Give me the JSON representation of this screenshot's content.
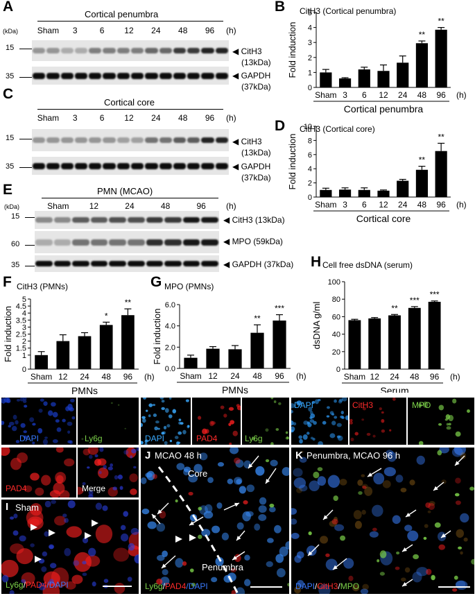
{
  "panels": {
    "A": {
      "letter": "A",
      "title": "Cortical penumbra",
      "kda": "(kDa)",
      "lanes": [
        "Sham",
        "3",
        "6",
        "12",
        "24",
        "48",
        "96"
      ],
      "hours": "(h)",
      "markers": [
        "15",
        "35"
      ],
      "bands": [
        {
          "arrow": "CitH3",
          "sub": "(13kDa)"
        },
        {
          "arrow": "GAPDH",
          "sub": "(37kDa)"
        }
      ]
    },
    "C": {
      "letter": "C",
      "title": "Cortical core",
      "lanes": [
        "Sham",
        "3",
        "6",
        "12",
        "24",
        "48",
        "96"
      ],
      "hours": "(h)",
      "markers": [
        "15",
        "35"
      ],
      "bands": [
        {
          "arrow": "CitH3",
          "sub": "(13kDa)"
        },
        {
          "arrow": "GAPDH",
          "sub": "(37kDa)"
        }
      ]
    },
    "E": {
      "letter": "E",
      "title": "PMN (MCAO)",
      "kda": "(kDa)",
      "lanes": [
        "Sham",
        "12",
        "24",
        "48",
        "96"
      ],
      "hours": "(h)",
      "markers": [
        "15",
        "60",
        "35"
      ],
      "bands": [
        "CitH3 (13kDa)",
        "MPO (59kDa)",
        "GAPDH (37kDa)"
      ]
    },
    "B": {
      "letter": "B",
      "title": "CitH3 (Cortical penumbra)",
      "ylabel": "Fold induction",
      "xlabel": "Cortical penumbra",
      "hours": "(h)"
    },
    "D": {
      "letter": "D",
      "title": "CitH3 (Cortical core)",
      "ylabel": "Fold induction",
      "xlabel": "Cortical core",
      "hours": "(h)"
    },
    "F": {
      "letter": "F",
      "title": "CitH3 (PMNs)",
      "ylabel": "Fold induction",
      "xlabel": "PMNs",
      "hours": "(h)"
    },
    "G": {
      "letter": "G",
      "title": "MPO (PMNs)",
      "ylabel": "Fold induction",
      "xlabel": "PMNs",
      "hours": "(h)"
    },
    "H": {
      "letter": "H",
      "title": "Cell free dsDNA  (serum)",
      "ylabel": "dsDNA g/ml",
      "xlabel": "Serum",
      "hours": "(h)"
    },
    "I": {
      "letter": "I",
      "tag": "Sham",
      "tiles": [
        "DAPI",
        "Ly6g",
        "PAD4",
        "Merge"
      ],
      "merge_parts": [
        "Ly6g",
        "/",
        "PAD4",
        "/DAPI"
      ]
    },
    "J": {
      "letter": "J",
      "tag": "MCAO 48 h",
      "core": "Core",
      "penumbra": "Penumbra",
      "tiles": [
        "DAPI",
        "PAD4",
        "Ly6g"
      ],
      "merge_parts": [
        "Ly6g",
        "/",
        "PAD4",
        "/DAPI"
      ]
    },
    "K": {
      "letter": "K",
      "tag": "Penumbra, MCAO 96 h",
      "tiles": [
        "DAPI",
        "CitH3",
        "MPO"
      ],
      "merge_parts": [
        "DAPI",
        "/",
        "CitH3",
        "/",
        "MPO"
      ]
    }
  },
  "colors": {
    "bar": "#000000",
    "dapi": "#2f78ff",
    "red": "#ff2020",
    "green": "#7dd24a"
  },
  "chart_data": [
    {
      "id": "B",
      "type": "bar",
      "title": "CitH3 (Cortical penumbra)",
      "xlabel": "Cortical penumbra",
      "ylabel": "Fold induction",
      "categories": [
        "Sham",
        "3",
        "6",
        "12",
        "24",
        "48",
        "96"
      ],
      "values": [
        1.0,
        0.6,
        1.2,
        1.1,
        1.65,
        2.95,
        3.85
      ],
      "errors": [
        0.2,
        0.05,
        0.15,
        0.4,
        0.45,
        0.15,
        0.15
      ],
      "significance": [
        "",
        "",
        "",
        "",
        "",
        "**",
        "**"
      ],
      "ylim": [
        0,
        5
      ],
      "yticks": [
        0,
        1,
        2,
        3,
        4,
        5
      ]
    },
    {
      "id": "D",
      "type": "bar",
      "title": "CitH3 (Cortical core)",
      "xlabel": "Cortical core",
      "ylabel": "Fold induction",
      "categories": [
        "Sham",
        "3",
        "6",
        "12",
        "24",
        "48",
        "96"
      ],
      "values": [
        1.0,
        1.05,
        1.0,
        0.9,
        2.3,
        3.85,
        6.5
      ],
      "errors": [
        0.25,
        0.25,
        0.3,
        0.1,
        0.2,
        0.5,
        1.1
      ],
      "significance": [
        "",
        "",
        "",
        "",
        "",
        "**",
        "**"
      ],
      "ylim": [
        0,
        10
      ],
      "yticks": [
        0,
        2,
        4,
        6,
        8,
        10
      ]
    },
    {
      "id": "F",
      "type": "bar",
      "title": "CitH3 (PMNs)",
      "xlabel": "PMNs",
      "ylabel": "Fold induction",
      "categories": [
        "Sham",
        "12",
        "24",
        "48",
        "96"
      ],
      "values": [
        1.0,
        2.0,
        2.35,
        3.15,
        3.85
      ],
      "errors": [
        0.25,
        0.45,
        0.25,
        0.2,
        0.45
      ],
      "significance": [
        "",
        "",
        "",
        "*",
        "**"
      ],
      "ylim": [
        0,
        5
      ],
      "yticks": [
        0,
        1,
        1.5,
        2,
        2.5,
        3,
        3.5,
        4,
        4.5,
        5
      ],
      "yticklabels": [
        "0",
        "1",
        "1.5",
        "2",
        "2.5",
        "3",
        "3.5",
        "4",
        "4.5",
        "5"
      ]
    },
    {
      "id": "G",
      "type": "bar",
      "title": "MPO (PMNs)",
      "xlabel": "PMNs",
      "ylabel": "Fold induction",
      "categories": [
        "Sham",
        "12",
        "24",
        "48",
        "96"
      ],
      "values": [
        1.0,
        1.85,
        1.8,
        3.35,
        4.5
      ],
      "errors": [
        0.25,
        0.2,
        0.35,
        0.75,
        0.55
      ],
      "significance": [
        "",
        "",
        "",
        "**",
        "***"
      ],
      "ylim": [
        0,
        6
      ],
      "yticks": [
        0,
        2,
        4,
        6
      ],
      "yticklabels": [
        "0.0",
        "2.0",
        "4.0",
        "6.0"
      ]
    },
    {
      "id": "H",
      "type": "bar",
      "title": "Cell free dsDNA  (serum)",
      "xlabel": "Serum",
      "ylabel": "dsDNA g/ml",
      "categories": [
        "Sham",
        "12",
        "24",
        "48",
        "96"
      ],
      "values": [
        56,
        58,
        61.5,
        70,
        77
      ],
      "errors": [
        1,
        1,
        1,
        1.5,
        1
      ],
      "significance": [
        "",
        "",
        "**",
        "***",
        "***"
      ],
      "ylim": [
        0,
        100
      ],
      "yticks": [
        0,
        20,
        40,
        60,
        80,
        100
      ]
    }
  ]
}
